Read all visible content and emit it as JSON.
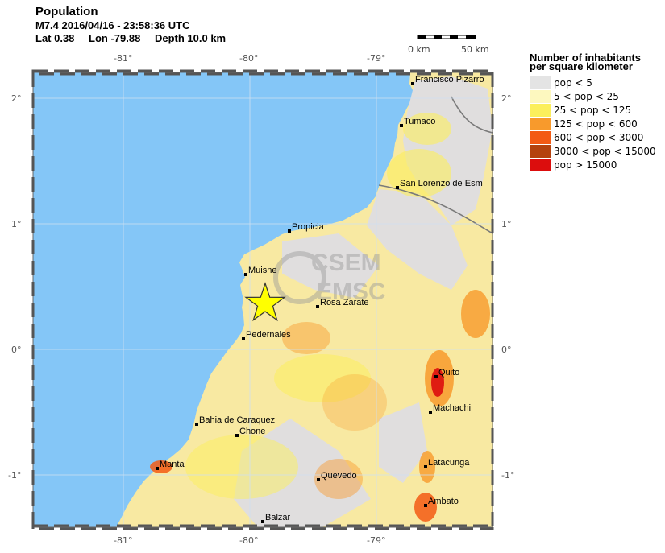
{
  "header": {
    "title": "Population",
    "line2": "M7.4  2016/04/16 - 23:58:36 UTC",
    "lat": "Lat  0.38",
    "lon": "Lon -79.88",
    "depth": "Depth  10.0 km"
  },
  "scale_bar": {
    "left_label": "0 km",
    "right_label": "50 km"
  },
  "axes": {
    "lon_ticks": [
      "-81°",
      "-80°",
      "-79°"
    ],
    "lat_ticks": [
      "2°",
      "1°",
      "0°",
      "-1°"
    ]
  },
  "cities": [
    {
      "name": "Francisco Pizarro"
    },
    {
      "name": "Tumaco"
    },
    {
      "name": "San Lorenzo de Esm"
    },
    {
      "name": "Propicia"
    },
    {
      "name": "Muisne"
    },
    {
      "name": "Rosa Zarate"
    },
    {
      "name": "Pedernales"
    },
    {
      "name": "Quito"
    },
    {
      "name": "Machachi"
    },
    {
      "name": "Bahia de Caraquez"
    },
    {
      "name": "Chone"
    },
    {
      "name": "Manta"
    },
    {
      "name": "Latacunga"
    },
    {
      "name": "Quevedo"
    },
    {
      "name": "Ambato"
    },
    {
      "name": "Balzar"
    }
  ],
  "watermark": {
    "line1": "CSEM",
    "line2": "EMSC"
  },
  "legend": {
    "title_line1": "Number of inhabitants",
    "title_line2": "per square kilometer",
    "items": [
      {
        "label": "pop < 5",
        "color": "#e4e4e4"
      },
      {
        "label": "5 < pop < 25",
        "color": "#fdf8bf"
      },
      {
        "label": "25 < pop < 125",
        "color": "#fbef5c"
      },
      {
        "label": "125 < pop < 600",
        "color": "#f89a2c"
      },
      {
        "label": "600 < pop < 3000",
        "color": "#f35a14"
      },
      {
        "label": "3000 < pop < 15000",
        "color": "#b4420e"
      },
      {
        "label": "pop > 15000",
        "color": "#dc0d0d"
      }
    ]
  },
  "colors": {
    "ocean": "#84c6f7",
    "land": "#f8e9a2",
    "epicenter": "#ffff00"
  }
}
